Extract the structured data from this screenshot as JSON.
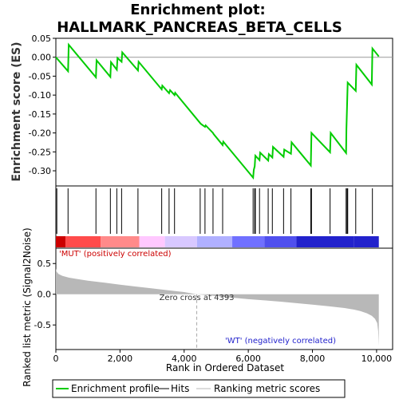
{
  "chart_data": {
    "type": "line",
    "title_line1": "Enrichment plot:",
    "title_line2": "HALLMARK_PANCREAS_BETA_CELLS",
    "es_panel": {
      "ylabel": "Enrichment score (ES)",
      "ylim": [
        -0.34,
        0.05
      ],
      "yticks": [
        0.05,
        0.0,
        -0.05,
        -0.1,
        -0.15,
        -0.2,
        -0.25,
        -0.3
      ],
      "ytick_labels": [
        "0.05",
        "0.00",
        "-0.05",
        "-0.10",
        "-0.15",
        "-0.20",
        "-0.25",
        "-0.30"
      ],
      "series": {
        "name": "Enrichment profile",
        "color": "#00cc00",
        "x": [
          0,
          380,
          400,
          1250,
          1270,
          1700,
          1720,
          1900,
          1920,
          2050,
          2070,
          2560,
          2580,
          3300,
          3320,
          3530,
          3560,
          3700,
          3720,
          4500,
          4520,
          4650,
          4670,
          4900,
          4920,
          5200,
          5220,
          6150,
          6170,
          6200,
          6220,
          6350,
          6370,
          6620,
          6640,
          6750,
          6770,
          7100,
          7120,
          7330,
          7350,
          7950,
          7970,
          8550,
          8570,
          9050,
          9060,
          9080,
          9100,
          9350,
          9370,
          9850,
          9870,
          10070
        ],
        "y": [
          0.0,
          -0.037,
          0.033,
          -0.053,
          -0.008,
          -0.052,
          -0.013,
          -0.033,
          -0.002,
          -0.012,
          0.013,
          -0.035,
          -0.012,
          -0.085,
          -0.075,
          -0.095,
          -0.087,
          -0.1,
          -0.094,
          -0.174,
          -0.176,
          -0.184,
          -0.18,
          -0.2,
          -0.203,
          -0.232,
          -0.223,
          -0.318,
          -0.298,
          -0.288,
          -0.26,
          -0.272,
          -0.252,
          -0.273,
          -0.256,
          -0.265,
          -0.237,
          -0.263,
          -0.244,
          -0.255,
          -0.225,
          -0.286,
          -0.2,
          -0.251,
          -0.2,
          -0.253,
          -0.19,
          -0.13,
          -0.067,
          -0.089,
          -0.02,
          -0.072,
          0.023,
          0.002
        ]
      }
    },
    "hits_panel": {
      "legend_name": "Hits",
      "hit_positions": [
        30,
        380,
        1250,
        1700,
        1900,
        2050,
        2560,
        3300,
        3530,
        3700,
        4500,
        4650,
        4900,
        5200,
        6150,
        6200,
        6220,
        6350,
        6620,
        6750,
        7100,
        7330,
        7950,
        7970,
        8550,
        9050,
        9080,
        9100,
        9350,
        9870
      ]
    },
    "color_bar": {
      "colors": [
        "#cc0000",
        "#ff4b4b",
        "#ff8a8a",
        "#ffc8ff",
        "#d8c8ff",
        "#b0b0ff",
        "#7070ff",
        "#5050ee",
        "#2222cc"
      ],
      "boundaries": [
        0,
        300,
        1400,
        2600,
        3400,
        4400,
        5500,
        6500,
        7500,
        9300,
        10070
      ]
    },
    "metric_panel": {
      "ylabel": "Ranked list metric (Signal2Noise)",
      "xlabel": "Rank in Ordered Dataset",
      "ylim": [
        -0.9,
        0.75
      ],
      "yticks": [
        0.5,
        0.0,
        -0.5
      ],
      "ytick_labels": [
        "0.5",
        "0.0",
        "-0.5"
      ],
      "xticks": [
        0,
        2000,
        4000,
        6000,
        8000,
        10000
      ],
      "xtick_labels": [
        "0",
        "2,000",
        "4,000",
        "6,000",
        "8,000",
        "10,000"
      ],
      "xlim": [
        0,
        10500
      ],
      "curve_x": [
        0,
        20,
        80,
        200,
        400,
        700,
        1000,
        1500,
        2000,
        2500,
        3000,
        3500,
        4000,
        4393,
        5000,
        5500,
        6000,
        6500,
        7000,
        7500,
        8000,
        8500,
        9000,
        9300,
        9500,
        9700,
        9850,
        9950,
        10020,
        10050,
        10070
      ],
      "curve_y": [
        0.42,
        0.37,
        0.33,
        0.3,
        0.27,
        0.245,
        0.22,
        0.19,
        0.155,
        0.125,
        0.095,
        0.065,
        0.035,
        0.0,
        -0.03,
        -0.055,
        -0.08,
        -0.1,
        -0.12,
        -0.145,
        -0.17,
        -0.195,
        -0.225,
        -0.25,
        -0.275,
        -0.31,
        -0.35,
        -0.4,
        -0.47,
        -0.6,
        -0.84
      ],
      "curve_color": "#b8b8b8",
      "zero_cross_x": 4393,
      "annotation_zero": "Zero cross at 4393",
      "annotation_pos": "'MUT' (positively correlated)",
      "annotation_pos_color": "#cc0000",
      "annotation_neg": "'WT' (negatively correlated)",
      "annotation_neg_color": "#2222cc"
    },
    "legend": {
      "items": [
        {
          "label": "Enrichment profile",
          "color": "#00cc00"
        },
        {
          "label": "Hits",
          "color": "#000000"
        },
        {
          "label": "Ranking metric scores",
          "color": "#b8b8b8"
        }
      ]
    }
  }
}
